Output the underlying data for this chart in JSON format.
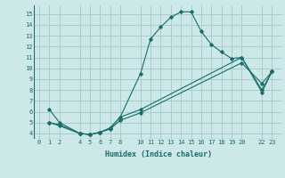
{
  "xlabel": "Humidex (Indice chaleur)",
  "bg_color": "#cce8e8",
  "grid_color": "#aacccc",
  "line_color": "#1a6b6b",
  "xticks": [
    0,
    1,
    2,
    4,
    5,
    6,
    7,
    8,
    10,
    11,
    12,
    13,
    14,
    15,
    16,
    17,
    18,
    19,
    20,
    22,
    23
  ],
  "yticks": [
    4,
    5,
    6,
    7,
    8,
    9,
    10,
    11,
    12,
    13,
    14,
    15
  ],
  "ylim": [
    3.5,
    15.8
  ],
  "xlim": [
    -0.5,
    24.0
  ],
  "line1_x": [
    1,
    2,
    4,
    5,
    6,
    7,
    8,
    10,
    11,
    12,
    13,
    14,
    15,
    16,
    17,
    18,
    19,
    20,
    22,
    23
  ],
  "line1_y": [
    5.0,
    4.8,
    4.0,
    3.9,
    4.1,
    4.5,
    5.5,
    9.5,
    12.7,
    13.8,
    14.7,
    15.2,
    15.2,
    13.4,
    12.2,
    11.5,
    10.9,
    11.0,
    7.8,
    9.7
  ],
  "line2_x": [
    1,
    2,
    4,
    5,
    6,
    7,
    8,
    10,
    20,
    22,
    23
  ],
  "line2_y": [
    5.0,
    4.7,
    4.0,
    3.9,
    4.1,
    4.5,
    5.5,
    6.2,
    11.0,
    8.0,
    9.7
  ],
  "line3_x": [
    1,
    2,
    4,
    5,
    6,
    7,
    8,
    10,
    20,
    22,
    23
  ],
  "line3_y": [
    6.2,
    5.0,
    4.0,
    3.9,
    4.1,
    4.4,
    5.2,
    5.9,
    10.5,
    8.6,
    9.7
  ]
}
